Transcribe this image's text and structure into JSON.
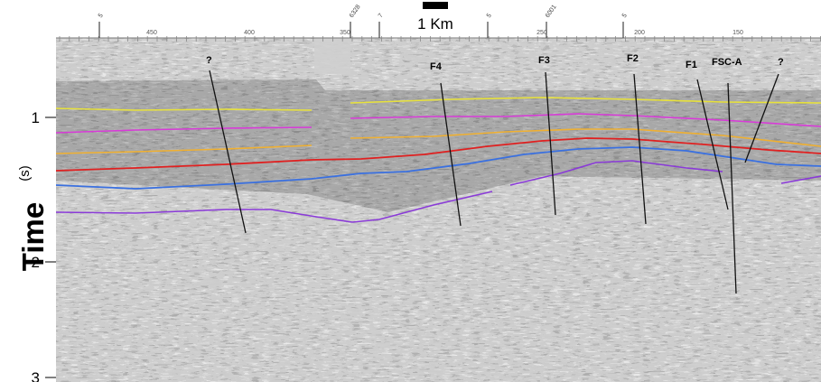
{
  "scale_bar": {
    "label": "1 Km"
  },
  "y_axis": {
    "title": "Time",
    "unit": "(s)",
    "ticks": [
      "1",
      "2",
      "3"
    ]
  },
  "x_axis": {
    "ticks": [
      "450",
      "400",
      "350",
      "250",
      "200",
      "150"
    ]
  },
  "top_markers": [
    "5",
    "6328",
    "7",
    "5",
    "6001",
    "5"
  ],
  "faults": [
    "?",
    "F4",
    "F3",
    "F2",
    "F1",
    "FSC-A",
    "?"
  ],
  "horizons": [
    {
      "color": "#e8e23a"
    },
    {
      "color": "#d83ad8"
    },
    {
      "color": "#f0b030"
    },
    {
      "color": "#e02020"
    },
    {
      "color": "#3a70e0"
    },
    {
      "color": "#8a3ad8"
    }
  ]
}
